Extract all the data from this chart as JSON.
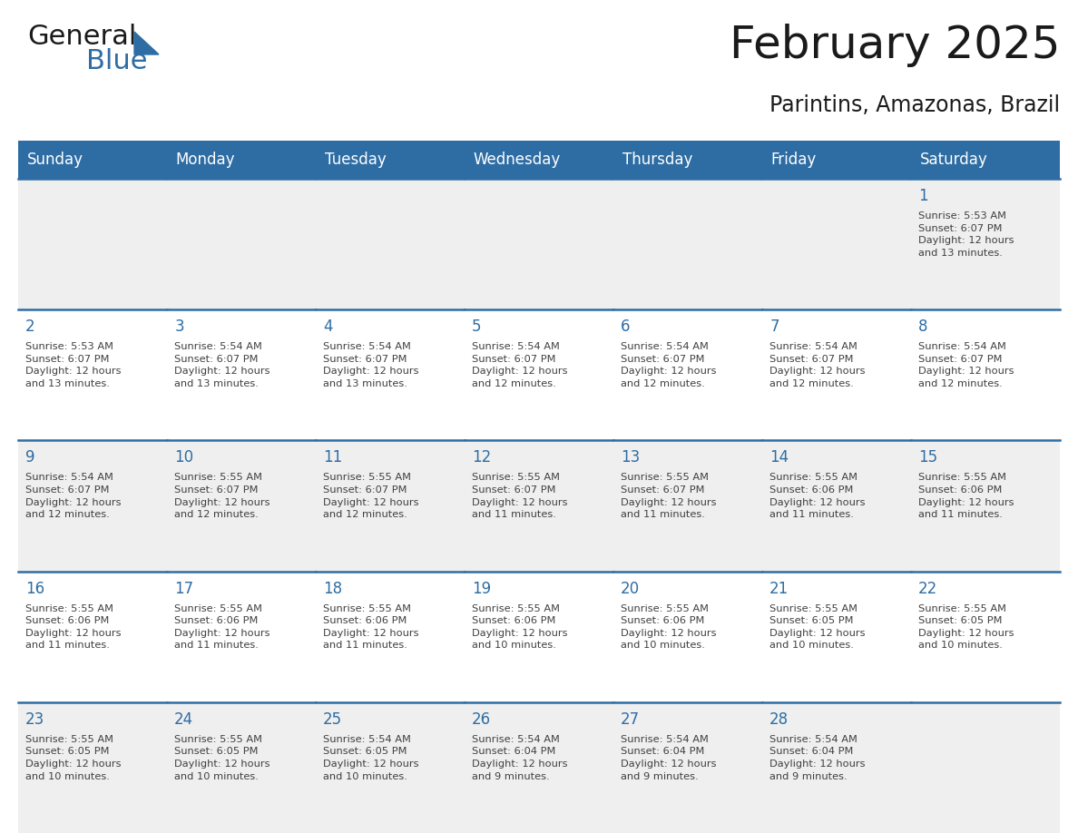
{
  "title": "February 2025",
  "subtitle": "Parintins, Amazonas, Brazil",
  "header_bg": "#2E6DA4",
  "header_text_color": "#FFFFFF",
  "cell_bg_odd": "#FFFFFF",
  "cell_bg_even": "#EFEFEF",
  "day_number_color": "#2E6DA4",
  "info_text_color": "#404040",
  "border_color": "#2E6DA4",
  "days_of_week": [
    "Sunday",
    "Monday",
    "Tuesday",
    "Wednesday",
    "Thursday",
    "Friday",
    "Saturday"
  ],
  "weeks": [
    [
      {
        "day": "",
        "info": ""
      },
      {
        "day": "",
        "info": ""
      },
      {
        "day": "",
        "info": ""
      },
      {
        "day": "",
        "info": ""
      },
      {
        "day": "",
        "info": ""
      },
      {
        "day": "",
        "info": ""
      },
      {
        "day": "1",
        "info": "Sunrise: 5:53 AM\nSunset: 6:07 PM\nDaylight: 12 hours\nand 13 minutes."
      }
    ],
    [
      {
        "day": "2",
        "info": "Sunrise: 5:53 AM\nSunset: 6:07 PM\nDaylight: 12 hours\nand 13 minutes."
      },
      {
        "day": "3",
        "info": "Sunrise: 5:54 AM\nSunset: 6:07 PM\nDaylight: 12 hours\nand 13 minutes."
      },
      {
        "day": "4",
        "info": "Sunrise: 5:54 AM\nSunset: 6:07 PM\nDaylight: 12 hours\nand 13 minutes."
      },
      {
        "day": "5",
        "info": "Sunrise: 5:54 AM\nSunset: 6:07 PM\nDaylight: 12 hours\nand 12 minutes."
      },
      {
        "day": "6",
        "info": "Sunrise: 5:54 AM\nSunset: 6:07 PM\nDaylight: 12 hours\nand 12 minutes."
      },
      {
        "day": "7",
        "info": "Sunrise: 5:54 AM\nSunset: 6:07 PM\nDaylight: 12 hours\nand 12 minutes."
      },
      {
        "day": "8",
        "info": "Sunrise: 5:54 AM\nSunset: 6:07 PM\nDaylight: 12 hours\nand 12 minutes."
      }
    ],
    [
      {
        "day": "9",
        "info": "Sunrise: 5:54 AM\nSunset: 6:07 PM\nDaylight: 12 hours\nand 12 minutes."
      },
      {
        "day": "10",
        "info": "Sunrise: 5:55 AM\nSunset: 6:07 PM\nDaylight: 12 hours\nand 12 minutes."
      },
      {
        "day": "11",
        "info": "Sunrise: 5:55 AM\nSunset: 6:07 PM\nDaylight: 12 hours\nand 12 minutes."
      },
      {
        "day": "12",
        "info": "Sunrise: 5:55 AM\nSunset: 6:07 PM\nDaylight: 12 hours\nand 11 minutes."
      },
      {
        "day": "13",
        "info": "Sunrise: 5:55 AM\nSunset: 6:07 PM\nDaylight: 12 hours\nand 11 minutes."
      },
      {
        "day": "14",
        "info": "Sunrise: 5:55 AM\nSunset: 6:06 PM\nDaylight: 12 hours\nand 11 minutes."
      },
      {
        "day": "15",
        "info": "Sunrise: 5:55 AM\nSunset: 6:06 PM\nDaylight: 12 hours\nand 11 minutes."
      }
    ],
    [
      {
        "day": "16",
        "info": "Sunrise: 5:55 AM\nSunset: 6:06 PM\nDaylight: 12 hours\nand 11 minutes."
      },
      {
        "day": "17",
        "info": "Sunrise: 5:55 AM\nSunset: 6:06 PM\nDaylight: 12 hours\nand 11 minutes."
      },
      {
        "day": "18",
        "info": "Sunrise: 5:55 AM\nSunset: 6:06 PM\nDaylight: 12 hours\nand 11 minutes."
      },
      {
        "day": "19",
        "info": "Sunrise: 5:55 AM\nSunset: 6:06 PM\nDaylight: 12 hours\nand 10 minutes."
      },
      {
        "day": "20",
        "info": "Sunrise: 5:55 AM\nSunset: 6:06 PM\nDaylight: 12 hours\nand 10 minutes."
      },
      {
        "day": "21",
        "info": "Sunrise: 5:55 AM\nSunset: 6:05 PM\nDaylight: 12 hours\nand 10 minutes."
      },
      {
        "day": "22",
        "info": "Sunrise: 5:55 AM\nSunset: 6:05 PM\nDaylight: 12 hours\nand 10 minutes."
      }
    ],
    [
      {
        "day": "23",
        "info": "Sunrise: 5:55 AM\nSunset: 6:05 PM\nDaylight: 12 hours\nand 10 minutes."
      },
      {
        "day": "24",
        "info": "Sunrise: 5:55 AM\nSunset: 6:05 PM\nDaylight: 12 hours\nand 10 minutes."
      },
      {
        "day": "25",
        "info": "Sunrise: 5:54 AM\nSunset: 6:05 PM\nDaylight: 12 hours\nand 10 minutes."
      },
      {
        "day": "26",
        "info": "Sunrise: 5:54 AM\nSunset: 6:04 PM\nDaylight: 12 hours\nand 9 minutes."
      },
      {
        "day": "27",
        "info": "Sunrise: 5:54 AM\nSunset: 6:04 PM\nDaylight: 12 hours\nand 9 minutes."
      },
      {
        "day": "28",
        "info": "Sunrise: 5:54 AM\nSunset: 6:04 PM\nDaylight: 12 hours\nand 9 minutes."
      },
      {
        "day": "",
        "info": ""
      }
    ]
  ],
  "logo_text_general": "General",
  "logo_text_blue": "Blue",
  "logo_color_general": "#1a1a1a",
  "logo_color_blue": "#2E6DA4",
  "logo_triangle_color": "#2E6DA4"
}
